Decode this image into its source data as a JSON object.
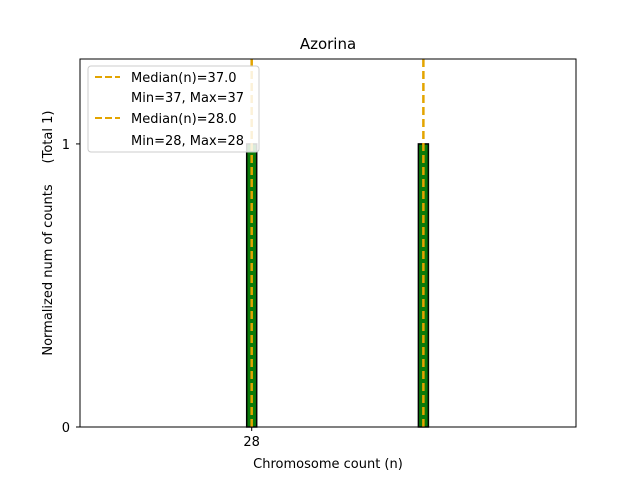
{
  "chart_data": {
    "type": "bar",
    "title": "Azorina",
    "xlabel": "Chromosome count (n)",
    "ylabel": "Normalized num of counts",
    "ylabel_secondary": "(Total 1)",
    "xlim": [
      19,
      45
    ],
    "ylim": [
      0,
      1.3
    ],
    "xticks": [
      28
    ],
    "yticks": [
      0,
      1
    ],
    "grid": false,
    "legend_position": "top-left",
    "bars": [
      {
        "x": 28,
        "value": 1
      },
      {
        "x": 37,
        "value": 1
      }
    ],
    "bar_fill": "#0a7a0a",
    "bar_edge": "#000000",
    "median_color": "#e3a400",
    "medians": [
      37,
      28
    ],
    "legend": [
      {
        "median_label": "Median(n)=37.0",
        "range_label": "Min=37, Max=37"
      },
      {
        "median_label": "Median(n)=28.0",
        "range_label": "Min=28, Max=28"
      }
    ]
  }
}
